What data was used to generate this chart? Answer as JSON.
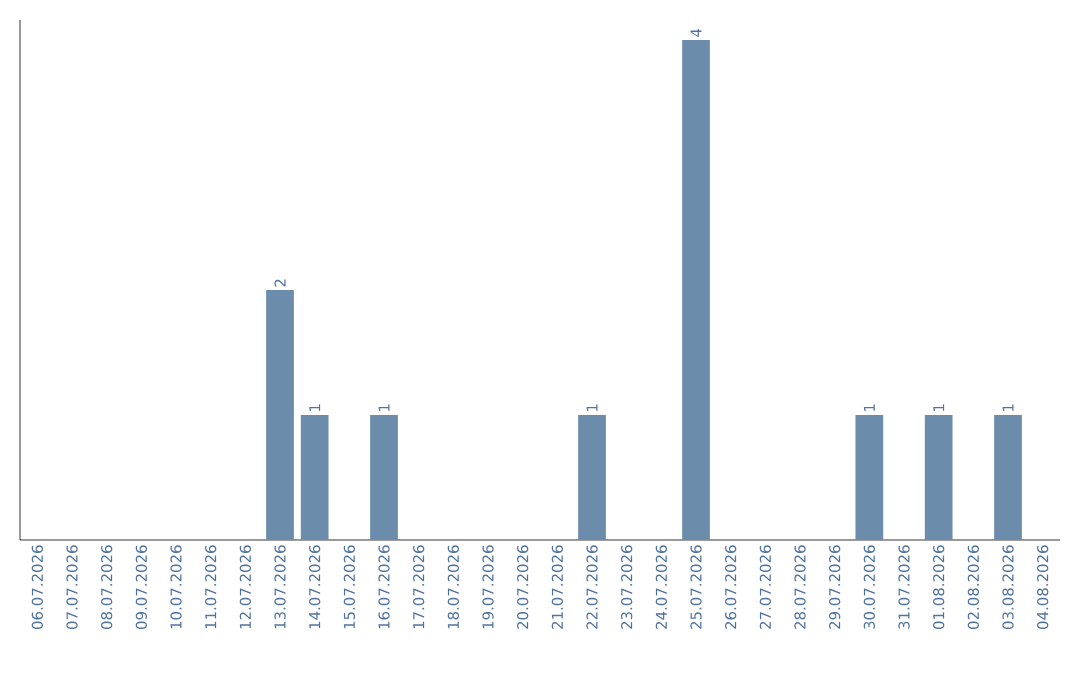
{
  "chart_data": {
    "type": "bar",
    "categories": [
      "06.07.2026",
      "07.07.2026",
      "08.07.2026",
      "09.07.2026",
      "10.07.2026",
      "11.07.2026",
      "12.07.2026",
      "13.07.2026",
      "14.07.2026",
      "15.07.2026",
      "16.07.2026",
      "17.07.2026",
      "18.07.2026",
      "19.07.2026",
      "20.07.2026",
      "21.07.2026",
      "22.07.2026",
      "23.07.2026",
      "24.07.2026",
      "25.07.2026",
      "26.07.2026",
      "27.07.2026",
      "28.07.2026",
      "29.07.2026",
      "30.07.2026",
      "31.07.2026",
      "01.08.2026",
      "02.08.2026",
      "03.08.2026",
      "04.08.2026"
    ],
    "values": [
      0,
      0,
      0,
      0,
      0,
      0,
      0,
      2,
      1,
      0,
      1,
      0,
      0,
      0,
      0,
      0,
      1,
      0,
      0,
      4,
      0,
      0,
      0,
      0,
      1,
      0,
      1,
      0,
      1,
      0
    ],
    "value_labels": [
      null,
      null,
      null,
      null,
      null,
      null,
      null,
      "2",
      "1",
      null,
      "1",
      null,
      null,
      null,
      null,
      null,
      "1",
      null,
      null,
      "4",
      null,
      null,
      null,
      null,
      "1",
      null,
      "1",
      null,
      "1",
      null
    ],
    "color": "#6b8cab",
    "tick_labels": "x"
  }
}
